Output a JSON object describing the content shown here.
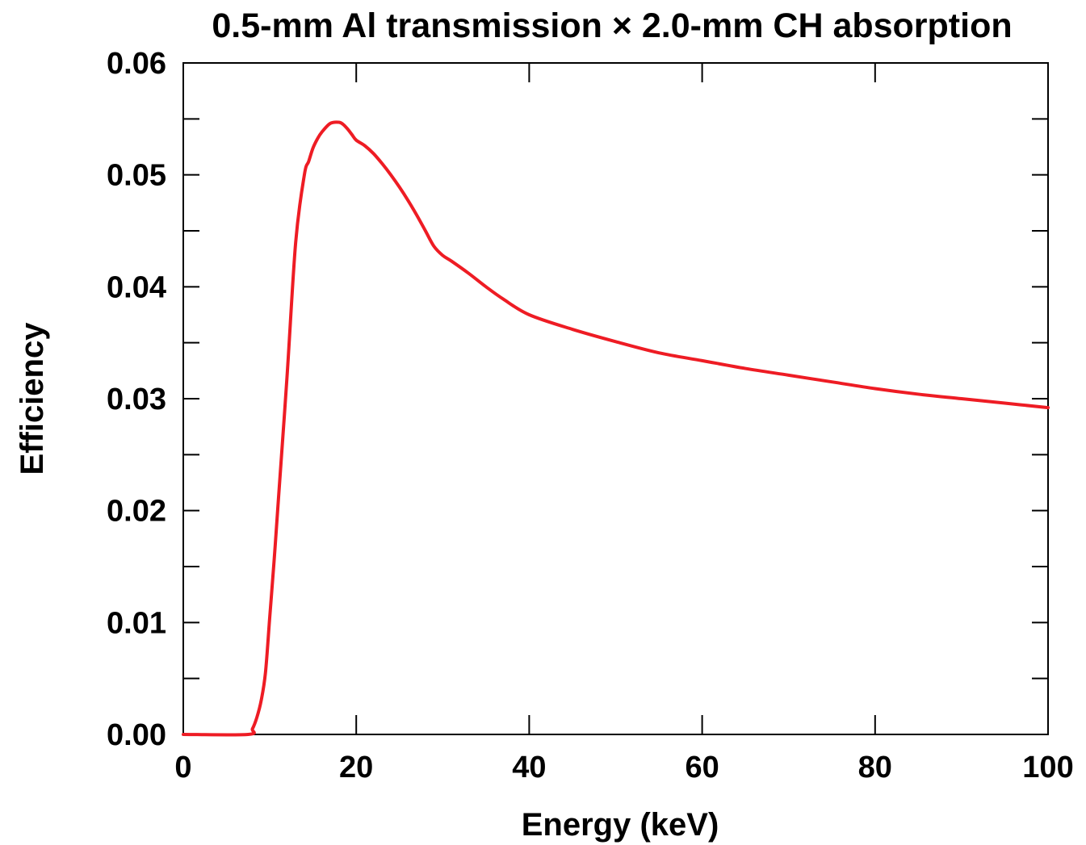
{
  "chart_data": {
    "type": "line",
    "title": "0.5-mm Al transmission × 2.0-mm CH absorption",
    "xlabel": "Energy (keV)",
    "ylabel": "Efficiency",
    "xlim": [
      0,
      100
    ],
    "ylim": [
      0,
      0.06
    ],
    "x_ticks": [
      0,
      20,
      40,
      60,
      80,
      100
    ],
    "x_tick_labels": [
      "0",
      "20",
      "40",
      "60",
      "80",
      "100"
    ],
    "y_ticks": [
      0,
      0.01,
      0.02,
      0.03,
      0.04,
      0.05,
      0.06
    ],
    "y_tick_labels": [
      "0.00",
      "0.01",
      "0.02",
      "0.03",
      "0.04",
      "0.05",
      "0.06"
    ],
    "grid": false,
    "legend": "none",
    "series": [
      {
        "color": "#ee1c24",
        "x": [
          0,
          7.5,
          8.0,
          8.5,
          9.0,
          9.5,
          10.0,
          10.5,
          11.0,
          12.0,
          13.0,
          14.0,
          14.5,
          15.0,
          15.5,
          16.0,
          17.0,
          18.0,
          18.5,
          19.0,
          19.5,
          20.0,
          21.0,
          22.0,
          23.0,
          24.0,
          25.0,
          26.0,
          27.0,
          28.0,
          29.0,
          30.0,
          31.0,
          33.0,
          35.0,
          37.0,
          40.0,
          45.0,
          50.0,
          55.0,
          60.0,
          65.0,
          70.0,
          75.0,
          80.0,
          85.0,
          90.0,
          95.0,
          100.0
        ],
        "y": [
          0.0,
          0.0,
          0.0005,
          0.0015,
          0.003,
          0.0055,
          0.0105,
          0.0155,
          0.021,
          0.032,
          0.044,
          0.05,
          0.0512,
          0.0524,
          0.0532,
          0.0538,
          0.0546,
          0.0547,
          0.0545,
          0.0541,
          0.0536,
          0.0531,
          0.0526,
          0.0519,
          0.051,
          0.05,
          0.0489,
          0.0477,
          0.0464,
          0.045,
          0.0436,
          0.0428,
          0.0423,
          0.0412,
          0.04,
          0.0389,
          0.0375,
          0.0362,
          0.0351,
          0.0341,
          0.0334,
          0.0327,
          0.0321,
          0.0315,
          0.0309,
          0.0304,
          0.03,
          0.0296,
          0.0292
        ]
      }
    ]
  }
}
